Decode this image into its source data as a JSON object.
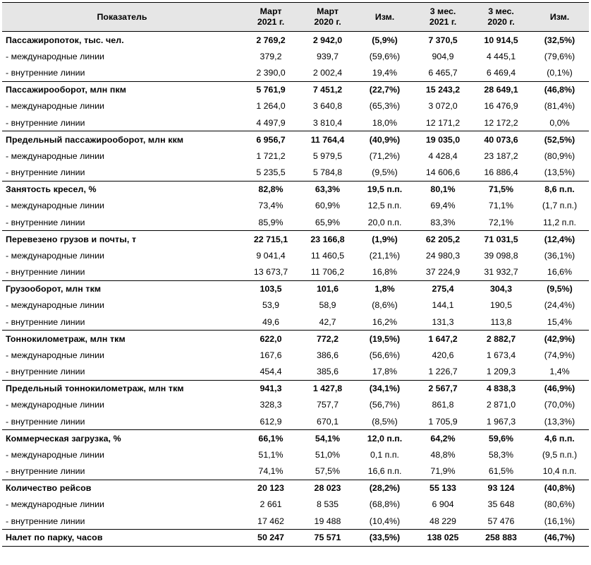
{
  "header": {
    "indicator": "Показатель",
    "columns": [
      {
        "line1": "Март",
        "line2": "2021 г."
      },
      {
        "line1": "Март",
        "line2": "2020 г."
      },
      {
        "line1": "Изм.",
        "line2": ""
      },
      {
        "line1": "3 мес.",
        "line2": "2021 г."
      },
      {
        "line1": "3 мес.",
        "line2": "2020 г."
      },
      {
        "line1": "Изм.",
        "line2": ""
      }
    ]
  },
  "sections": [
    {
      "title": "Пассажиропоток, тыс. чел.",
      "values": [
        "2 769,2",
        "2 942,0",
        "(5,9%)",
        "7 370,5",
        "10 914,5",
        "(32,5%)"
      ],
      "subrows": [
        {
          "label": "- международные линии",
          "values": [
            "379,2",
            "939,7",
            "(59,6%)",
            "904,9",
            "4 445,1",
            "(79,6%)"
          ]
        },
        {
          "label": "- внутренние линии",
          "values": [
            "2 390,0",
            "2 002,4",
            "19,4%",
            "6 465,7",
            "6 469,4",
            "(0,1%)"
          ]
        }
      ]
    },
    {
      "title": "Пассажирооборот, млн пкм",
      "values": [
        "5 761,9",
        "7 451,2",
        "(22,7%)",
        "15 243,2",
        "28 649,1",
        "(46,8%)"
      ],
      "subrows": [
        {
          "label": "- международные линии",
          "values": [
            "1 264,0",
            "3 640,8",
            "(65,3%)",
            "3 072,0",
            "16 476,9",
            "(81,4%)"
          ]
        },
        {
          "label": "- внутренние линии",
          "values": [
            "4 497,9",
            "3 810,4",
            "18,0%",
            "12 171,2",
            "12 172,2",
            "0,0%"
          ]
        }
      ]
    },
    {
      "title": "Предельный пассажирооборот, млн ккм",
      "values": [
        "6 956,7",
        "11 764,4",
        "(40,9%)",
        "19 035,0",
        "40 073,6",
        "(52,5%)"
      ],
      "subrows": [
        {
          "label": "- международные линии",
          "values": [
            "1 721,2",
            "5 979,5",
            "(71,2%)",
            "4 428,4",
            "23 187,2",
            "(80,9%)"
          ]
        },
        {
          "label": "- внутренние линии",
          "values": [
            "5 235,5",
            "5 784,8",
            "(9,5%)",
            "14 606,6",
            "16 886,4",
            "(13,5%)"
          ]
        }
      ]
    },
    {
      "title": "Занятость кресел, %",
      "values": [
        "82,8%",
        "63,3%",
        "19,5 п.п.",
        "80,1%",
        "71,5%",
        "8,6 п.п."
      ],
      "subrows": [
        {
          "label": "- международные линии",
          "values": [
            "73,4%",
            "60,9%",
            "12,5 п.п.",
            "69,4%",
            "71,1%",
            "(1,7 п.п.)"
          ]
        },
        {
          "label": "- внутренние линии",
          "values": [
            "85,9%",
            "65,9%",
            "20,0 п.п.",
            "83,3%",
            "72,1%",
            "11,2 п.п."
          ]
        }
      ]
    },
    {
      "title": "Перевезено грузов и почты, т",
      "values": [
        "22 715,1",
        "23 166,8",
        "(1,9%)",
        "62 205,2",
        "71 031,5",
        "(12,4%)"
      ],
      "subrows": [
        {
          "label": "- международные линии",
          "values": [
            "9 041,4",
            "11 460,5",
            "(21,1%)",
            "24 980,3",
            "39 098,8",
            "(36,1%)"
          ]
        },
        {
          "label": "- внутренние линии",
          "values": [
            "13 673,7",
            "11 706,2",
            "16,8%",
            "37 224,9",
            "31 932,7",
            "16,6%"
          ]
        }
      ]
    },
    {
      "title": "Грузооборот, млн ткм",
      "values": [
        "103,5",
        "101,6",
        "1,8%",
        "275,4",
        "304,3",
        "(9,5%)"
      ],
      "subrows": [
        {
          "label": "- международные линии",
          "values": [
            "53,9",
            "58,9",
            "(8,6%)",
            "144,1",
            "190,5",
            "(24,4%)"
          ]
        },
        {
          "label": "- внутренние линии",
          "values": [
            "49,6",
            "42,7",
            "16,2%",
            "131,3",
            "113,8",
            "15,4%"
          ]
        }
      ]
    },
    {
      "title": "Тоннокилометраж, млн ткм",
      "values": [
        "622,0",
        "772,2",
        "(19,5%)",
        "1 647,2",
        "2 882,7",
        "(42,9%)"
      ],
      "subrows": [
        {
          "label": "- международные линии",
          "values": [
            "167,6",
            "386,6",
            "(56,6%)",
            "420,6",
            "1 673,4",
            "(74,9%)"
          ]
        },
        {
          "label": "- внутренние линии",
          "values": [
            "454,4",
            "385,6",
            "17,8%",
            "1 226,7",
            "1 209,3",
            "1,4%"
          ]
        }
      ]
    },
    {
      "title": "Предельный тоннокилометраж, млн ткм",
      "values": [
        "941,3",
        "1 427,8",
        "(34,1%)",
        "2 567,7",
        "4 838,3",
        "(46,9%)"
      ],
      "subrows": [
        {
          "label": "- международные линии",
          "values": [
            "328,3",
            "757,7",
            "(56,7%)",
            "861,8",
            "2 871,0",
            "(70,0%)"
          ]
        },
        {
          "label": "- внутренние линии",
          "values": [
            "612,9",
            "670,1",
            "(8,5%)",
            "1 705,9",
            "1 967,3",
            "(13,3%)"
          ]
        }
      ]
    },
    {
      "title": "Коммерческая загрузка, %",
      "values": [
        "66,1%",
        "54,1%",
        "12,0 п.п.",
        "64,2%",
        "59,6%",
        "4,6 п.п."
      ],
      "subrows": [
        {
          "label": "- международные линии",
          "values": [
            "51,1%",
            "51,0%",
            "0,1 п.п.",
            "48,8%",
            "58,3%",
            "(9,5 п.п.)"
          ]
        },
        {
          "label": "- внутренние линии",
          "values": [
            "74,1%",
            "57,5%",
            "16,6 п.п.",
            "71,9%",
            "61,5%",
            "10,4 п.п."
          ]
        }
      ]
    },
    {
      "title": "Количество рейсов",
      "values": [
        "20 123",
        "28 023",
        "(28,2%)",
        "55 133",
        "93 124",
        "(40,8%)"
      ],
      "subrows": [
        {
          "label": "- международные линии",
          "values": [
            "2 661",
            "8 535",
            "(68,8%)",
            "6 904",
            "35 648",
            "(80,6%)"
          ]
        },
        {
          "label": "- внутренние линии",
          "values": [
            "17 462",
            "19 488",
            "(10,4%)",
            "48 229",
            "57 476",
            "(16,1%)"
          ]
        }
      ]
    },
    {
      "title": "Налет по парку, часов",
      "values": [
        "50 247",
        "75 571",
        "(33,5%)",
        "138 025",
        "258 883",
        "(46,7%)"
      ],
      "subrows": []
    }
  ]
}
